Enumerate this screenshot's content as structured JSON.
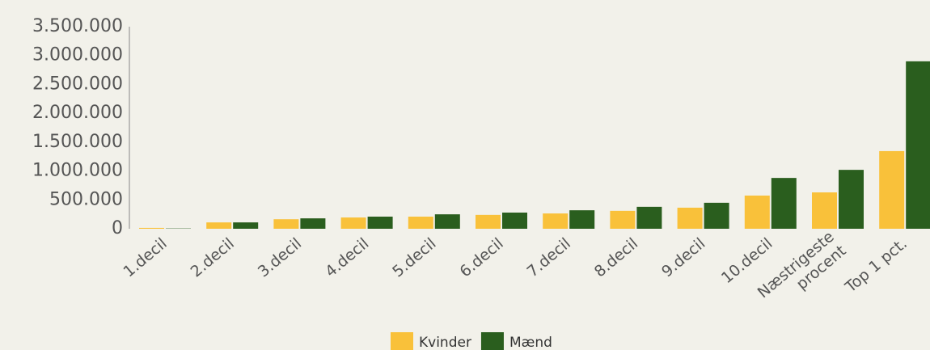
{
  "chart_data": {
    "type": "bar",
    "categories": [
      "1.decil",
      "2.decil",
      "3.decil",
      "4.decil",
      "5.decil",
      "6.decil",
      "7.decil",
      "8.decil",
      "9.decil",
      "10.decil",
      "Næstrigeste procent",
      "Top 1 pct."
    ],
    "series": [
      {
        "name": "Kvinder",
        "color": "#f9c13a",
        "values": [
          15000,
          110000,
          165000,
          195000,
          210000,
          240000,
          265000,
          310000,
          365000,
          575000,
          630000,
          1345000
        ]
      },
      {
        "name": "Mænd",
        "color": "#2a5e1e",
        "values": [
          5000,
          110000,
          180000,
          210000,
          250000,
          280000,
          320000,
          380000,
          450000,
          880000,
          1020000,
          2900000
        ]
      }
    ],
    "ylim": [
      0,
      3500000
    ],
    "yticks": [
      0,
      {
        "value": 500000,
        "label": "500.000"
      },
      {
        "value": 1000000,
        "label": "1.000.000"
      },
      {
        "value": 1500000,
        "label": "1.500.000"
      },
      {
        "value": 2000000,
        "label": "2.000.000"
      },
      {
        "value": 2500000,
        "label": "2.500.000"
      },
      {
        "value": 3000000,
        "label": "3.000.000"
      },
      {
        "value": 3500000,
        "label": "3.500.000"
      }
    ],
    "legend": "bottom"
  }
}
